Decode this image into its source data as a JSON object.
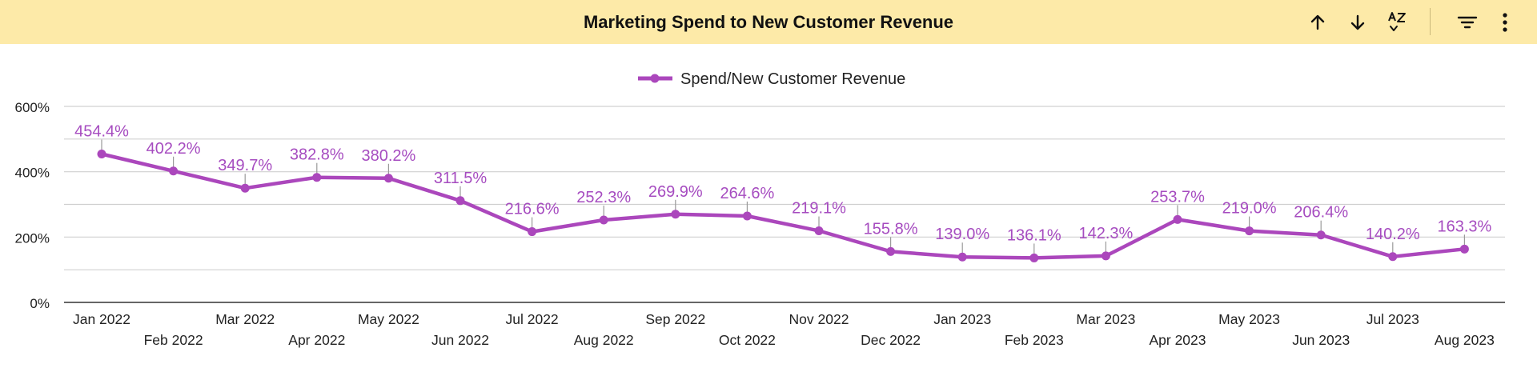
{
  "header": {
    "title": "Marketing Spend to New Customer Revenue",
    "icons": [
      "sort-ascending-icon",
      "sort-descending-icon",
      "sort-alpha-icon",
      "filter-icon",
      "more-vert-icon"
    ]
  },
  "colors": {
    "header_bg": "#fdeaa8",
    "series": "#ab47bc",
    "label": "#a64cc0",
    "grid": "#d0d0d0",
    "axis": "#333333"
  },
  "chart_data": {
    "type": "line",
    "title": "Marketing Spend to New Customer Revenue",
    "xlabel": "",
    "ylabel": "",
    "ylim": [
      0,
      600
    ],
    "yticks": [
      0,
      200,
      400,
      600
    ],
    "ytick_labels": [
      "0%",
      "200%",
      "400%",
      "600%"
    ],
    "grid": true,
    "legend": "top-center",
    "categories": [
      "Jan 2022",
      "Feb 2022",
      "Mar 2022",
      "Apr 2022",
      "May 2022",
      "Jun 2022",
      "Jul 2022",
      "Aug 2022",
      "Sep 2022",
      "Oct 2022",
      "Nov 2022",
      "Dec 2022",
      "Jan 2023",
      "Feb 2023",
      "Mar 2023",
      "Apr 2023",
      "May 2023",
      "Jun 2023",
      "Jul 2023",
      "Aug 2023"
    ],
    "series": [
      {
        "name": "Spend/New Customer Revenue",
        "values": [
          454.4,
          402.2,
          349.7,
          382.8,
          380.2,
          311.5,
          216.6,
          252.3,
          269.9,
          264.6,
          219.1,
          155.8,
          139.0,
          136.1,
          142.3,
          253.7,
          219.0,
          206.4,
          140.2,
          163.3
        ],
        "labels": [
          "454.4%",
          "402.2%",
          "349.7%",
          "382.8%",
          "380.2%",
          "311.5%",
          "216.6%",
          "252.3%",
          "269.9%",
          "264.6%",
          "219.1%",
          "155.8%",
          "139.0%",
          "136.1%",
          "142.3%",
          "253.7%",
          "219.0%",
          "206.4%",
          "140.2%",
          "163.3%"
        ]
      }
    ]
  }
}
